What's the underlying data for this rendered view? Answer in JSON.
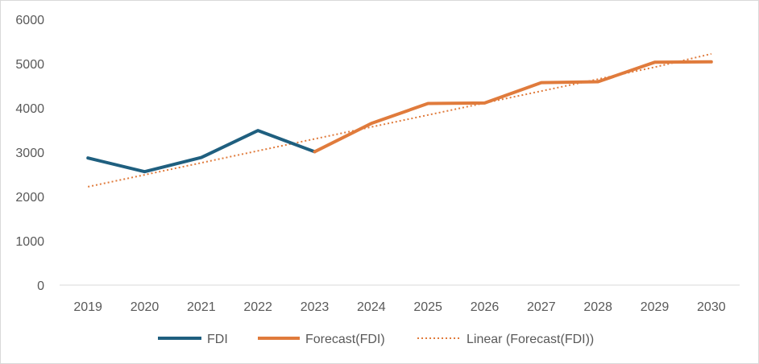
{
  "chart_data": {
    "type": "line",
    "categories": [
      "2019",
      "2020",
      "2021",
      "2022",
      "2023",
      "2024",
      "2025",
      "2026",
      "2027",
      "2028",
      "2029",
      "2030"
    ],
    "ylim": [
      0,
      6000
    ],
    "yticks": [
      0,
      1000,
      2000,
      3000,
      4000,
      5000,
      6000
    ],
    "grid": false,
    "legend_position": "bottom",
    "series": [
      {
        "name": "FDI",
        "color": "#1f5f7f",
        "style": "solid",
        "values": [
          2870,
          2560,
          2880,
          3490,
          3010,
          null,
          null,
          null,
          null,
          null,
          null,
          null
        ]
      },
      {
        "name": "Forecast(FDI)",
        "color": "#e07b3c",
        "style": "solid",
        "values": [
          null,
          null,
          null,
          null,
          3010,
          3650,
          4100,
          4110,
          4570,
          4590,
          5030,
          5040
        ]
      },
      {
        "name": "Linear (Forecast(FDI))",
        "color": "#e07b3c",
        "style": "dotted",
        "trendline_of": "Forecast(FDI)",
        "values": [
          2220,
          2490,
          2760,
          3030,
          3300,
          3570,
          3840,
          4110,
          4380,
          4650,
          4920,
          5220
        ]
      }
    ]
  }
}
